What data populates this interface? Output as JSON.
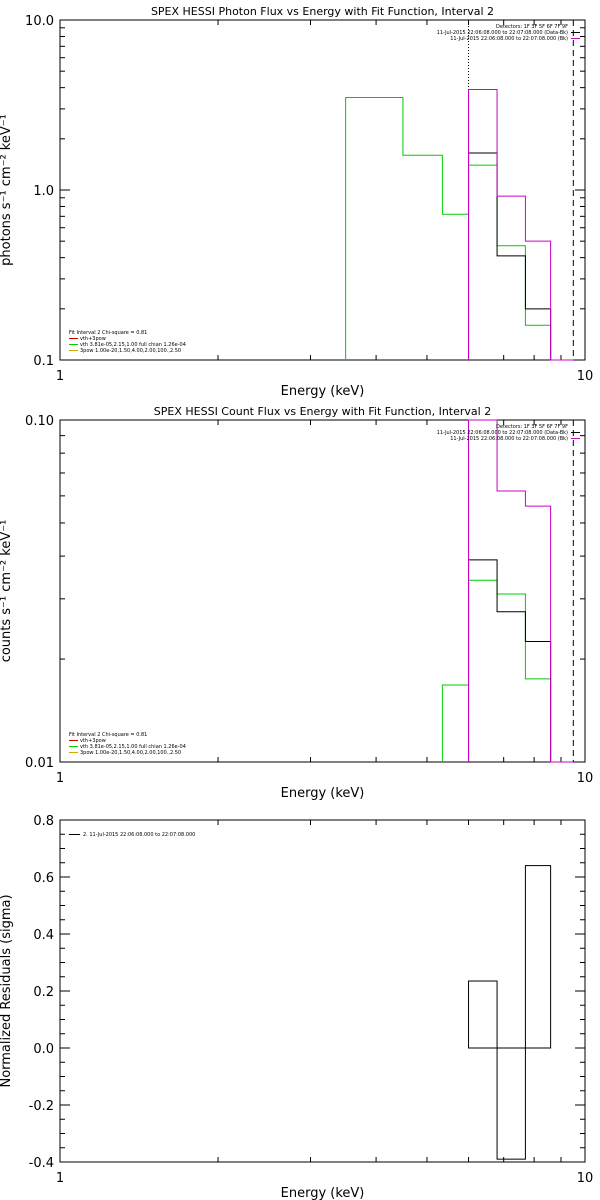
{
  "chart_data": [
    {
      "type": "line",
      "title": "SPEX HESSI Photon Flux vs Energy with Fit Function, Interval 2",
      "xlabel": "Energy (keV)",
      "ylabel": "photons s⁻¹ cm⁻² keV⁻¹",
      "xscale": "log",
      "yscale": "log",
      "xlim": [
        1,
        10
      ],
      "ylim": [
        0.1,
        10
      ],
      "xticks": [
        {
          "v": 1,
          "label": "1"
        },
        {
          "v": 10,
          "label": "10"
        }
      ],
      "yticks": [
        {
          "v": 0.1,
          "label": "0.1"
        },
        {
          "v": 1,
          "label": "1.0"
        },
        {
          "v": 10,
          "label": "10.0"
        }
      ],
      "vlines": [
        {
          "x": 6.0,
          "style": "dotted"
        },
        {
          "x": 9.5,
          "style": "dashed"
        }
      ],
      "legend_topright": [
        {
          "text": "Detectors: 1F 3F 5F 6F 7F 9F",
          "color": ""
        },
        {
          "text": "11-Jul-2015 22:06:08.000 to 22:07:08.000 (Data-Bk)",
          "color": "#000000"
        },
        {
          "text": "11-Jul-2015 22:06:08.000 to 22:07:08.000 (Bk)",
          "color": "#cc00cc"
        }
      ],
      "legend_bottomleft": [
        {
          "text": "Fit Interval 2   Chi-square = 0.81",
          "color": ""
        },
        {
          "text": "vth+3pow",
          "color": "#cc0000"
        },
        {
          "text": "vth 3.81e-05,2.15,1.00  full chian 1.26e-04",
          "color": "#00cc00"
        },
        {
          "text": "3pow 1.00e-20,1.50,4.00,2.00,100.,2.50",
          "color": "#ccaa00"
        }
      ],
      "series": [
        {
          "name": "vth",
          "color": "#00cc00",
          "edges": [
            3.5,
            4.5,
            5.35,
            6.0,
            6.8,
            7.7,
            8.6,
            9.5
          ],
          "values": [
            3.5,
            1.6,
            0.72,
            1.4,
            0.47,
            0.16,
            0.1
          ]
        },
        {
          "name": "Data-Bk",
          "color": "#000000",
          "edges": [
            6.0,
            6.8,
            7.7,
            8.6,
            9.5
          ],
          "values": [
            1.65,
            0.41,
            0.2,
            0.1
          ]
        },
        {
          "name": "Bk",
          "color": "#cc00cc",
          "edges": [
            6.0,
            6.8,
            7.7,
            8.6,
            9.5
          ],
          "values": [
            3.9,
            0.92,
            0.5,
            0.1
          ]
        }
      ]
    },
    {
      "type": "line",
      "title": "SPEX HESSI Count Flux vs Energy with Fit Function, Interval 2",
      "xlabel": "Energy (keV)",
      "ylabel": "counts s⁻¹ cm⁻² keV⁻¹",
      "xscale": "log",
      "yscale": "log",
      "xlim": [
        1,
        10
      ],
      "ylim": [
        0.01,
        0.1
      ],
      "xticks": [
        {
          "v": 1,
          "label": "1"
        },
        {
          "v": 10,
          "label": "10"
        }
      ],
      "yticks": [
        {
          "v": 0.01,
          "label": "0.01"
        },
        {
          "v": 0.1,
          "label": "0.10"
        }
      ],
      "vlines": [
        {
          "x": 6.0,
          "style": "dotted"
        },
        {
          "x": 9.5,
          "style": "dashed"
        }
      ],
      "legend_topright": [
        {
          "text": "Detectors: 1F 3F 5F 6F 7F 9F",
          "color": ""
        },
        {
          "text": "11-Jul-2015 22:06:08.000 to 22:07:08.000 (Data-Bk)",
          "color": "#000000"
        },
        {
          "text": "11-Jul-2015 22:06:08.000 to 22:07:08.000 (Bk)",
          "color": "#cc00cc"
        }
      ],
      "legend_bottomleft": [
        {
          "text": "Fit Interval 2   Chi-square = 0.81",
          "color": ""
        },
        {
          "text": "vth+3pow",
          "color": "#cc0000"
        },
        {
          "text": "vth 3.81e-05,2.15,1.00  full chian 1.26e-04",
          "color": "#00cc00"
        },
        {
          "text": "3pow 1.00e-20,1.50,4.00,2.00,100.,2.50",
          "color": "#ccaa00"
        }
      ],
      "series": [
        {
          "name": "vth",
          "color": "#00cc00",
          "edges": [
            5.35,
            6.0,
            6.8,
            7.7,
            8.6,
            9.5
          ],
          "values": [
            0.0168,
            0.034,
            0.031,
            0.0175,
            0.01
          ]
        },
        {
          "name": "Data-Bk",
          "color": "#000000",
          "edges": [
            6.0,
            6.8,
            7.7,
            8.6,
            9.5
          ],
          "values": [
            0.039,
            0.0275,
            0.0225,
            0.01
          ]
        },
        {
          "name": "Bk",
          "color": "#cc00cc",
          "edges": [
            6.0,
            6.8,
            7.7,
            8.6,
            9.5
          ],
          "values": [
            0.1,
            0.062,
            0.056,
            0.01
          ]
        }
      ]
    },
    {
      "type": "bar",
      "title": "",
      "xlabel": "Energy (keV)",
      "ylabel": "Normalized Residuals (sigma)",
      "xscale": "log",
      "yscale": "linear",
      "xlim": [
        1,
        10
      ],
      "ylim": [
        -0.4,
        0.8
      ],
      "xticks": [
        {
          "v": 1,
          "label": "1"
        },
        {
          "v": 10,
          "label": "10"
        }
      ],
      "yticks": [
        {
          "v": -0.4,
          "label": "-0.4"
        },
        {
          "v": -0.2,
          "label": "-0.2"
        },
        {
          "v": 0,
          "label": "0.0"
        },
        {
          "v": 0.2,
          "label": "0.2"
        },
        {
          "v": 0.4,
          "label": "0.4"
        },
        {
          "v": 0.6,
          "label": "0.6"
        },
        {
          "v": 0.8,
          "label": "0.8"
        }
      ],
      "vlines": [],
      "legend_topright": [],
      "legend_bottomleft": [],
      "legend_topleft": [
        {
          "text": "2. 11-Jul-2015 22:06:08.000 to 22:07:08.000",
          "color": "#000000"
        }
      ],
      "series": [
        {
          "name": "residuals",
          "color": "#000000",
          "edges": [
            6.0,
            6.8,
            7.7,
            8.6
          ],
          "values": [
            0.235,
            -0.39,
            0.64
          ]
        }
      ]
    }
  ]
}
